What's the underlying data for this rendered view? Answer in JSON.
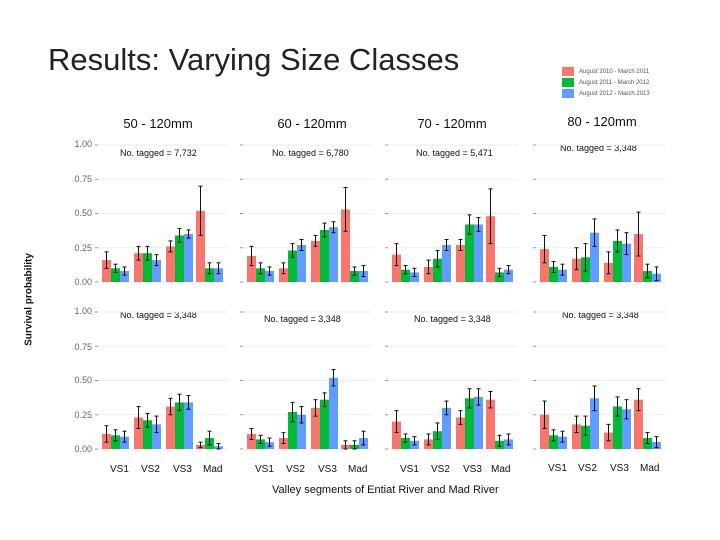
{
  "slide_title": "Results: Varying Size Classes",
  "legend": [
    {
      "label": "August 2010 - March 2011",
      "color": "#F8766D"
    },
    {
      "label": "August 2011 - March 2012",
      "color": "#00BA38"
    },
    {
      "label": "August 2012 - March 2013",
      "color": "#619CFF"
    }
  ],
  "y_axis_label": "Survival probability",
  "x_axis_label": "Valley segments of Entiat River and Mad River",
  "y_ticks": [
    "1.00",
    "0.75",
    "0.50",
    "0.25",
    "0.00"
  ],
  "panels": [
    {
      "title": "50 - 120mm",
      "tagged_top": "No. tagged = 7,732",
      "tagged_bottom": "No. tagged = 3,348"
    },
    {
      "title": "60 - 120mm",
      "tagged_top": "No. tagged = 6,780",
      "tagged_bottom": "No. tagged = 3,348"
    },
    {
      "title": "70 - 120mm",
      "tagged_top": "No. tagged = 5,471",
      "tagged_bottom": "No. tagged = 3,348"
    },
    {
      "title": "80 - 120mm",
      "tagged_top": "No. tagged = 3,348",
      "tagged_bottom": "No. tagged = 3,348"
    }
  ],
  "chart_data": {
    "type": "bar",
    "title": "Results: Varying Size Classes",
    "xlabel": "Valley segments of Entiat River and Mad River",
    "ylabel": "Survival probability",
    "ylim": [
      0,
      1
    ],
    "categories": [
      "VS1",
      "VS2",
      "VS3",
      "Mad"
    ],
    "series_names": [
      "August 2010 - March 2011",
      "August 2011 - March 2012",
      "August 2012 - March 2013"
    ],
    "rows": [
      [
        {
          "values": [
            [
              0.16,
              0.1,
              0.08
            ],
            [
              0.21,
              0.21,
              0.16
            ],
            [
              0.26,
              0.34,
              0.35
            ],
            [
              0.52,
              0.1,
              0.1
            ]
          ],
          "errors": [
            [
              0.06,
              0.03,
              0.03
            ],
            [
              0.05,
              0.05,
              0.04
            ],
            [
              0.04,
              0.05,
              0.03
            ],
            [
              0.18,
              0.04,
              0.04
            ]
          ]
        },
        {
          "values": [
            [
              0.19,
              0.1,
              0.08
            ],
            [
              0.1,
              0.23,
              0.27
            ],
            [
              0.3,
              0.38,
              0.4
            ],
            [
              0.53,
              0.08,
              0.08
            ]
          ],
          "errors": [
            [
              0.07,
              0.04,
              0.03
            ],
            [
              0.04,
              0.05,
              0.04
            ],
            [
              0.04,
              0.05,
              0.04
            ],
            [
              0.16,
              0.03,
              0.04
            ]
          ]
        },
        {
          "values": [
            [
              0.2,
              0.09,
              0.07
            ],
            [
              0.11,
              0.17,
              0.27
            ],
            [
              0.27,
              0.42,
              0.42
            ],
            [
              0.48,
              0.07,
              0.09
            ]
          ],
          "errors": [
            [
              0.08,
              0.03,
              0.03
            ],
            [
              0.05,
              0.06,
              0.04
            ],
            [
              0.04,
              0.07,
              0.05
            ],
            [
              0.2,
              0.03,
              0.03
            ]
          ]
        },
        {
          "values": [
            [
              0.24,
              0.11,
              0.09
            ],
            [
              0.17,
              0.18,
              0.36
            ],
            [
              0.14,
              0.3,
              0.28
            ],
            [
              0.35,
              0.08,
              0.06
            ]
          ],
          "errors": [
            [
              0.1,
              0.04,
              0.04
            ],
            [
              0.08,
              0.1,
              0.1
            ],
            [
              0.08,
              0.08,
              0.08
            ],
            [
              0.16,
              0.05,
              0.05
            ]
          ]
        }
      ],
      [
        {
          "values": [
            [
              0.11,
              0.1,
              0.09
            ],
            [
              0.23,
              0.21,
              0.18
            ],
            [
              0.31,
              0.34,
              0.34
            ],
            [
              0.03,
              0.08,
              0.02
            ]
          ],
          "errors": [
            [
              0.06,
              0.04,
              0.04
            ],
            [
              0.08,
              0.05,
              0.06
            ],
            [
              0.06,
              0.06,
              0.05
            ],
            [
              0.02,
              0.05,
              0.02
            ]
          ]
        },
        {
          "values": [
            [
              0.11,
              0.07,
              0.05
            ],
            [
              0.08,
              0.27,
              0.25
            ],
            [
              0.3,
              0.36,
              0.52
            ],
            [
              0.03,
              0.03,
              0.08
            ]
          ],
          "errors": [
            [
              0.04,
              0.03,
              0.03
            ],
            [
              0.04,
              0.07,
              0.06
            ],
            [
              0.06,
              0.05,
              0.06
            ],
            [
              0.03,
              0.03,
              0.05
            ]
          ]
        },
        {
          "values": [
            [
              0.2,
              0.08,
              0.06
            ],
            [
              0.07,
              0.13,
              0.3
            ],
            [
              0.23,
              0.37,
              0.38
            ],
            [
              0.36,
              0.06,
              0.07
            ]
          ],
          "errors": [
            [
              0.08,
              0.03,
              0.03
            ],
            [
              0.04,
              0.06,
              0.05
            ],
            [
              0.05,
              0.07,
              0.06
            ],
            [
              0.06,
              0.04,
              0.04
            ]
          ]
        },
        {
          "values": [
            [
              0.25,
              0.1,
              0.09
            ],
            [
              0.18,
              0.17,
              0.37
            ],
            [
              0.12,
              0.31,
              0.29
            ],
            [
              0.36,
              0.08,
              0.05
            ]
          ],
          "errors": [
            [
              0.1,
              0.04,
              0.04
            ],
            [
              0.06,
              0.07,
              0.09
            ],
            [
              0.06,
              0.07,
              0.07
            ],
            [
              0.08,
              0.04,
              0.04
            ]
          ]
        }
      ]
    ]
  }
}
